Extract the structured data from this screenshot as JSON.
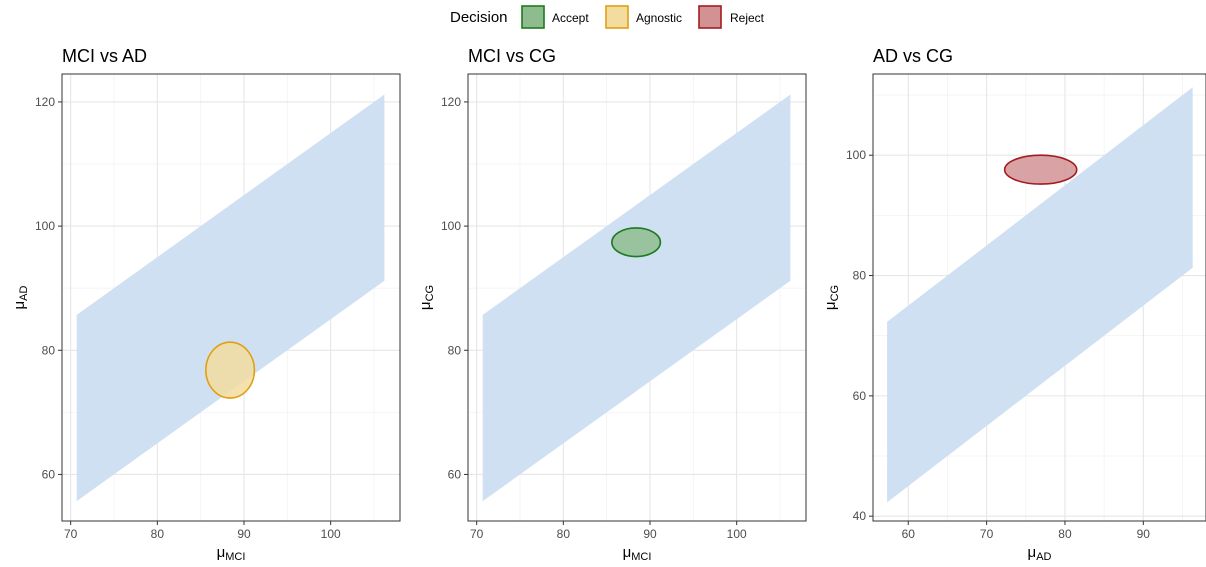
{
  "legend": {
    "title": "Decision",
    "items": [
      {
        "label": "Accept",
        "fill": "#8fbc8f",
        "stroke": "#1e7b1e"
      },
      {
        "label": "Agnostic",
        "fill": "#f3dc9f",
        "stroke": "#e0a010"
      },
      {
        "label": "Reject",
        "fill": "#d29294",
        "stroke": "#a11d20"
      }
    ]
  },
  "colors": {
    "band": "#cfe0f3",
    "grid_major": "#e6e6e6",
    "grid_minor": "#f3f3f3",
    "panel_border": "#333333",
    "tick_text": "#4d4d4d"
  },
  "chart_data": [
    {
      "type": "scatter",
      "title": "MCI vs AD",
      "xlabel": {
        "main": "μ",
        "sub": "MCI"
      },
      "ylabel": {
        "main": "μ",
        "sub": "AD"
      },
      "xlim": [
        69,
        108
      ],
      "ylim": [
        52.5,
        124.5
      ],
      "xticks": [
        70,
        80,
        90,
        100
      ],
      "yticks": [
        60,
        80,
        100,
        120
      ],
      "band": {
        "x": [
          70.7,
          106.2
        ],
        "lower": [
          55.7,
          91.2
        ],
        "upper": [
          85.7,
          121.2
        ]
      },
      "ellipse": {
        "decision": "Agnostic",
        "cx": 88.4,
        "cy": 76.8,
        "rx": 2.8,
        "ry": 4.5
      }
    },
    {
      "type": "scatter",
      "title": "MCI vs CG",
      "xlabel": {
        "main": "μ",
        "sub": "MCI"
      },
      "ylabel": {
        "main": "μ",
        "sub": "CG"
      },
      "xlim": [
        69,
        108
      ],
      "ylim": [
        52.5,
        124.5
      ],
      "xticks": [
        70,
        80,
        90,
        100
      ],
      "yticks": [
        60,
        80,
        100,
        120
      ],
      "band": {
        "x": [
          70.7,
          106.2
        ],
        "lower": [
          55.7,
          91.2
        ],
        "upper": [
          85.7,
          121.2
        ]
      },
      "ellipse": {
        "decision": "Accept",
        "cx": 88.4,
        "cy": 97.4,
        "rx": 2.8,
        "ry": 2.3
      }
    },
    {
      "type": "scatter",
      "title": "AD vs CG",
      "xlabel": {
        "main": "μ",
        "sub": "AD"
      },
      "ylabel": {
        "main": "μ",
        "sub": "CG"
      },
      "xlim": [
        55.5,
        98
      ],
      "ylim": [
        39.2,
        113.5
      ],
      "xticks": [
        60,
        70,
        80,
        90
      ],
      "yticks": [
        40,
        60,
        80,
        100
      ],
      "band": {
        "x": [
          57.3,
          96.3
        ],
        "lower": [
          42.3,
          81.3
        ],
        "upper": [
          72.3,
          111.3
        ]
      },
      "ellipse": {
        "decision": "Reject",
        "cx": 76.9,
        "cy": 97.6,
        "rx": 4.6,
        "ry": 2.4
      }
    }
  ]
}
